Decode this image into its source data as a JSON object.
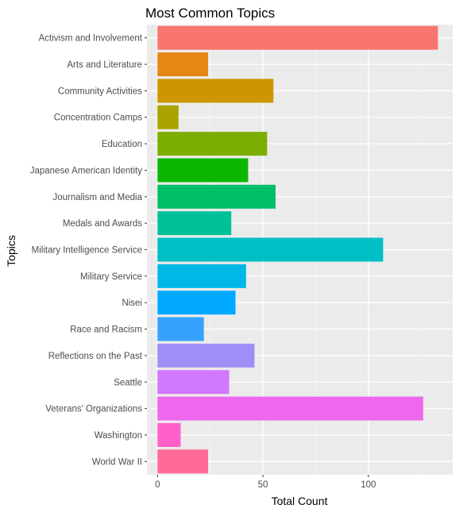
{
  "chart_data": {
    "type": "bar",
    "orientation": "horizontal",
    "title": "Most Common Topics",
    "xlabel": "Total Count",
    "ylabel": "Topics",
    "xlim": [
      -5,
      140
    ],
    "xticks": [
      0,
      50,
      100
    ],
    "grid": true,
    "legend": "none",
    "categories": [
      "Activism and Involvement",
      "Arts and Literature",
      "Community Activities",
      "Concentration Camps",
      "Education",
      "Japanese American Identity",
      "Journalism and Media",
      "Medals and Awards",
      "Military Intelligence Service",
      "Military Service",
      "Nisei",
      "Race and Racism",
      "Reflections on the Past",
      "Seattle",
      "Veterans' Organizations",
      "Washington",
      "World War II"
    ],
    "values": [
      133,
      24,
      55,
      10,
      52,
      43,
      56,
      35,
      107,
      42,
      37,
      22,
      46,
      34,
      126,
      11,
      24
    ],
    "colors": [
      "#F8766D",
      "#E68613",
      "#CD9600",
      "#ABA300",
      "#7CAE00",
      "#0CB702",
      "#00BE67",
      "#00C19A",
      "#00BFC4",
      "#00B8E7",
      "#00A9FF",
      "#35A2FF",
      "#9D8FF5",
      "#D277FF",
      "#ED68ED",
      "#FF61C9",
      "#FF6A98"
    ],
    "panel_background": "#EBEBEB",
    "grid_major_color": "#FFFFFF",
    "grid_minor_color": "#F4F4F4"
  }
}
